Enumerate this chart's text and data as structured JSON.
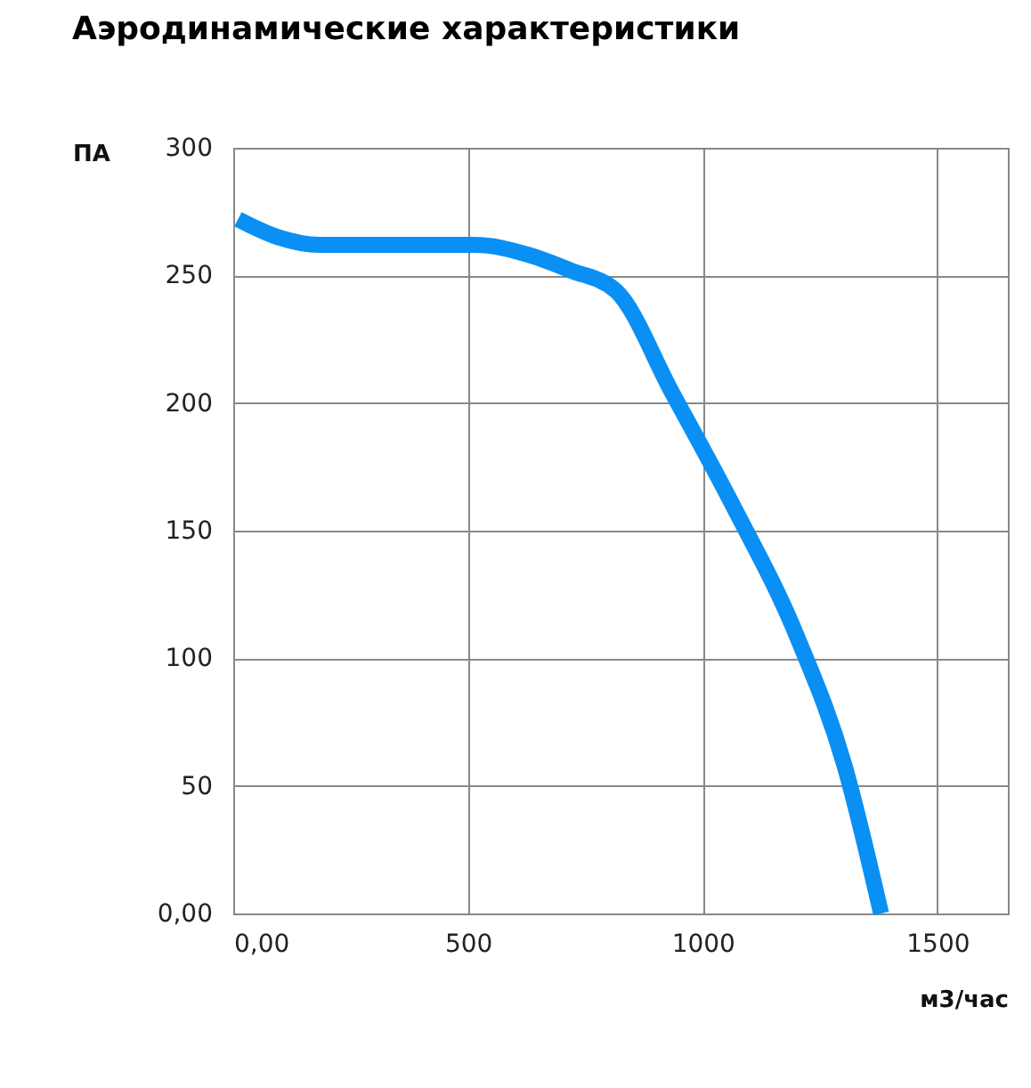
{
  "chart_data": {
    "type": "line",
    "title": "Аэродинамические характеристики",
    "xlabel": "м3/час",
    "ylabel": "ПА",
    "x": [
      10,
      95,
      183,
      374,
      515,
      630,
      718,
      815,
      935,
      1061,
      1202,
      1302,
      1380
    ],
    "series": [
      {
        "color": "#0a90f5",
        "values": [
          272,
          265,
          262,
          262,
          262,
          258,
          252,
          244,
          204,
          161,
          108,
          58,
          0
        ]
      }
    ],
    "xlim": [
      0,
      1650
    ],
    "xticks": [
      {
        "value": 0,
        "label": "0,00"
      },
      500,
      1000,
      1500
    ],
    "ylim": [
      0,
      300
    ],
    "yticks": [
      {
        "value": 0,
        "label": "0,00"
      },
      50,
      100,
      150,
      200,
      250,
      300
    ],
    "grid": true,
    "marker": "none",
    "line_style": "solid"
  }
}
